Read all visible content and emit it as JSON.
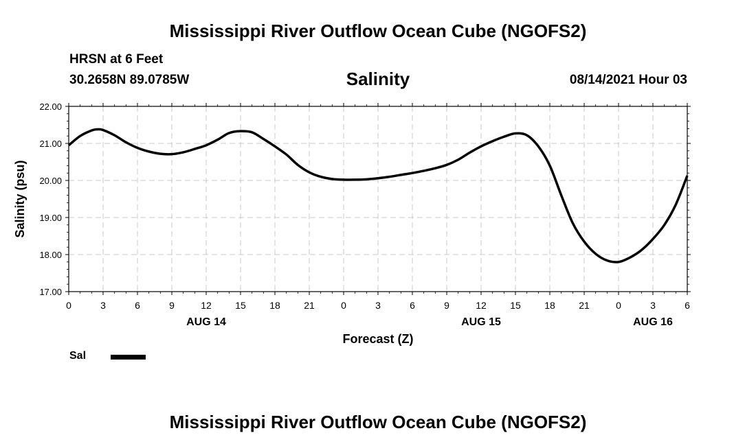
{
  "header": {
    "title": "Mississippi River Outflow Ocean Cube (NGOFS2)",
    "station": "HRSN at 6 Feet",
    "coordinates": "30.2658N  89.0785W",
    "variable": "Salinity",
    "datetime": "08/14/2021 Hour 03"
  },
  "footer": {
    "title": "Mississippi River Outflow Ocean Cube (NGOFS2)"
  },
  "legend": {
    "label": "Sal",
    "color": "#000000"
  },
  "chart_data": {
    "type": "line",
    "title": "Salinity",
    "xlabel": "Forecast (Z)",
    "ylabel": "Salinity (psu)",
    "ylim": [
      17.0,
      22.0
    ],
    "yticks": [
      "17.00",
      "18.00",
      "19.00",
      "20.00",
      "21.00",
      "22.00"
    ],
    "xlim": [
      0,
      54
    ],
    "xticks": [
      {
        "x": 0,
        "label": "0"
      },
      {
        "x": 3,
        "label": "3"
      },
      {
        "x": 6,
        "label": "6"
      },
      {
        "x": 9,
        "label": "9"
      },
      {
        "x": 12,
        "label": "12"
      },
      {
        "x": 15,
        "label": "15"
      },
      {
        "x": 18,
        "label": "18"
      },
      {
        "x": 21,
        "label": "21"
      },
      {
        "x": 24,
        "label": "0"
      },
      {
        "x": 27,
        "label": "3"
      },
      {
        "x": 30,
        "label": "6"
      },
      {
        "x": 33,
        "label": "9"
      },
      {
        "x": 36,
        "label": "12"
      },
      {
        "x": 39,
        "label": "15"
      },
      {
        "x": 42,
        "label": "18"
      },
      {
        "x": 45,
        "label": "21"
      },
      {
        "x": 48,
        "label": "0"
      },
      {
        "x": 51,
        "label": "3"
      },
      {
        "x": 54,
        "label": "6"
      }
    ],
    "date_labels": [
      {
        "x": 12,
        "label": "AUG 14"
      },
      {
        "x": 36,
        "label": "AUG 15"
      },
      {
        "x": 51,
        "label": "AUG 16"
      }
    ],
    "grid": true,
    "series": [
      {
        "name": "Sal",
        "x": [
          0,
          1,
          2,
          2.5,
          3,
          4,
          5,
          6,
          7,
          8,
          9,
          10,
          11,
          12,
          13,
          14,
          15,
          16,
          17,
          18,
          19,
          20,
          21,
          22,
          23,
          24,
          25,
          26,
          27,
          28,
          29,
          30,
          31,
          32,
          33,
          34,
          35,
          36,
          37,
          38,
          39,
          40,
          41,
          42,
          43,
          44,
          45,
          46,
          47,
          48,
          49,
          50,
          51,
          52,
          53,
          54
        ],
        "values": [
          20.95,
          21.2,
          21.35,
          21.38,
          21.36,
          21.22,
          21.03,
          20.88,
          20.78,
          20.72,
          20.71,
          20.76,
          20.85,
          20.95,
          21.1,
          21.28,
          21.33,
          21.3,
          21.12,
          20.92,
          20.7,
          20.42,
          20.22,
          20.1,
          20.04,
          20.02,
          20.02,
          20.03,
          20.06,
          20.1,
          20.15,
          20.2,
          20.26,
          20.33,
          20.42,
          20.56,
          20.75,
          20.92,
          21.06,
          21.18,
          21.27,
          21.22,
          20.92,
          20.4,
          19.6,
          18.85,
          18.35,
          18.02,
          17.84,
          17.8,
          17.92,
          18.12,
          18.42,
          18.8,
          19.35,
          20.13
        ]
      }
    ]
  }
}
